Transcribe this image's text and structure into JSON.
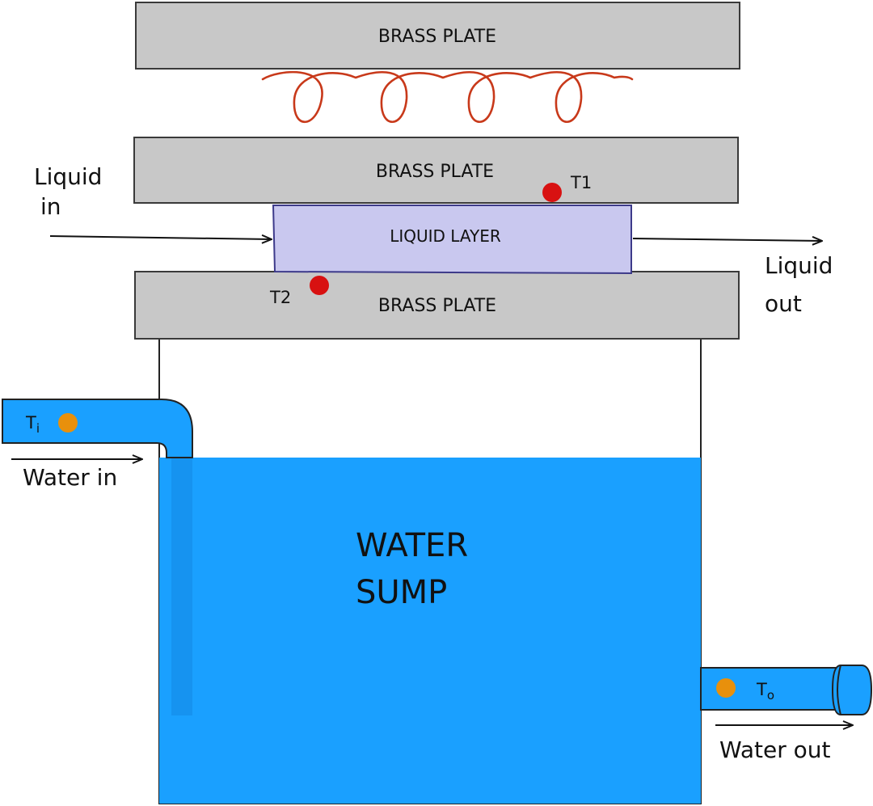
{
  "colors": {
    "plate_fill": "#c8c8c8",
    "plate_stroke": "#3a3a3a",
    "coil": "#c8391a",
    "liquid_fill": "#c9c8ef",
    "liquid_stroke": "#3d3a8a",
    "water": "#1aa0ff",
    "pipe_stroke": "#1468b4",
    "sensor_plate": "#d81111",
    "sensor_water": "#e8900c"
  },
  "plates": {
    "top": {
      "label": "BRASS PLATE"
    },
    "middle": {
      "label": "BRASS PLATE"
    },
    "bottom": {
      "label": "BRASS PLATE"
    }
  },
  "liquid_layer": {
    "label": "LIQUID LAYER"
  },
  "liquid_in": {
    "line1": "Liquid",
    "line2": "in"
  },
  "liquid_out": {
    "line1": "Liquid",
    "line2": "out"
  },
  "sensors": {
    "t1": {
      "label": "T1"
    },
    "t2": {
      "label": "T2"
    },
    "ti": {
      "base": "T",
      "sub": "i"
    },
    "to": {
      "base": "T",
      "sub": "o"
    }
  },
  "water_in": {
    "label": "Water in"
  },
  "water_out": {
    "label": "Water out"
  },
  "sump": {
    "line1": "WATER",
    "line2": "SUMP"
  }
}
